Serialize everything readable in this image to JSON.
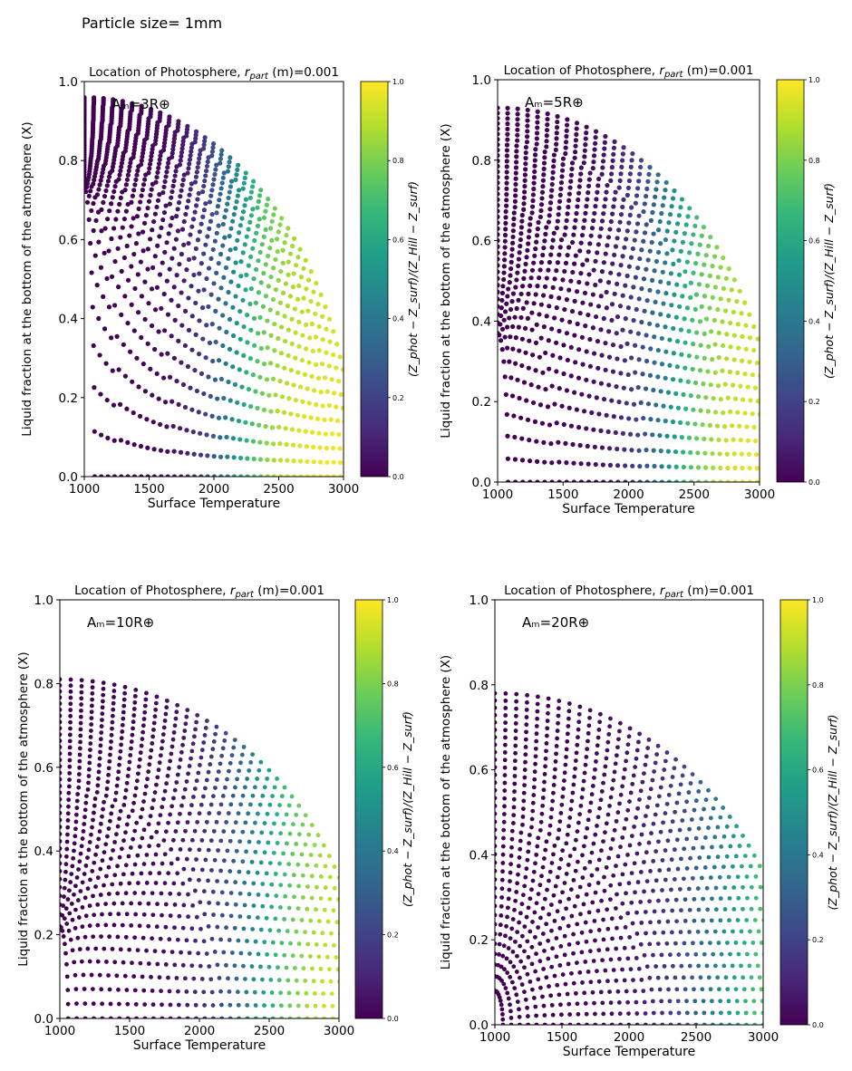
{
  "page_label": "Particle size= 1mm",
  "chart_data": [
    {
      "type": "scatter",
      "title": "Location of Photosphere, r_part (m)=0.001",
      "title_prefix": "Location of Photosphere, ",
      "title_symbol": "r",
      "title_subscript": "part",
      "title_suffix": " (m)=0.001",
      "annotation": "Aₘ=3R⊕",
      "xlabel": "Surface Temperature",
      "ylabel": "Liquid fraction at the bottom of the atmosphere (X)",
      "xlim": [
        1000,
        3000
      ],
      "ylim": [
        0.0,
        1.0
      ],
      "xticks": [
        "1000",
        "1500",
        "2000",
        "2500",
        "3000"
      ],
      "yticks": [
        "0.0",
        "0.2",
        "0.4",
        "0.6",
        "0.8",
        "1.0"
      ],
      "colorbar": {
        "label": "(Z_phot − Z_surf)/(Z_Hill − Z_surf)",
        "range": [
          0.0,
          1.0
        ],
        "ticks": [
          "0.0",
          "0.2",
          "0.4",
          "0.6",
          "0.8",
          "1.0"
        ],
        "colormap": "viridis"
      },
      "pattern": {
        "n_arcs": 40,
        "center_T": 1000,
        "center_X": 0.0,
        "Tmax_min": 1080,
        "Tmax_max": 3080,
        "peak_X_min": 0.73,
        "peak_X_max": 0.96,
        "transition_T": 2150,
        "transition_width": 160
      }
    },
    {
      "type": "scatter",
      "title": "Location of Photosphere, r_part (m)=0.001",
      "title_prefix": "Location of Photosphere, ",
      "title_symbol": "r",
      "title_subscript": "part",
      "title_suffix": " (m)=0.001",
      "annotation": "Aₘ=5R⊕",
      "xlabel": "Surface Temperature",
      "ylabel": "Liquid fraction at the bottom of the atmosphere (X)",
      "xlim": [
        1000,
        3000
      ],
      "ylim": [
        0.0,
        1.0
      ],
      "xticks": [
        "1000",
        "1500",
        "2000",
        "2500",
        "3000"
      ],
      "yticks": [
        "0.0",
        "0.2",
        "0.4",
        "0.6",
        "0.8",
        "1.0"
      ],
      "colorbar": {
        "label": "(Z_phot − Z_surf)/(Z_Hill − Z_surf)",
        "range": [
          0.0,
          1.0
        ],
        "ticks": [
          "0.0",
          "0.2",
          "0.4",
          "0.6",
          "0.8",
          "1.0"
        ],
        "colormap": "viridis"
      },
      "pattern": {
        "n_arcs": 38,
        "center_T": 1000,
        "center_X": 0.0,
        "Tmax_min": 1080,
        "Tmax_max": 3150,
        "peak_X_min": 0.37,
        "peak_X_max": 0.93,
        "transition_T": 2300,
        "transition_width": 180
      }
    },
    {
      "type": "scatter",
      "title": "Location of Photosphere, r_part (m)=0.001",
      "title_prefix": "Location of Photosphere, ",
      "title_symbol": "r",
      "title_subscript": "part",
      "title_suffix": " (m)=0.001",
      "annotation": "Aₘ=10R⊕",
      "xlabel": "Surface Temperature",
      "ylabel": "Liquid fraction at the bottom of the atmosphere (X)",
      "xlim": [
        1000,
        3000
      ],
      "ylim": [
        0.0,
        1.0
      ],
      "xticks": [
        "1000",
        "1500",
        "2000",
        "2500",
        "3000"
      ],
      "yticks": [
        "0.0",
        "0.2",
        "0.4",
        "0.6",
        "0.8",
        "1.0"
      ],
      "colorbar": {
        "label": "(Z_phot − Z_surf)/(Z_Hill − Z_surf)",
        "range": [
          0.0,
          1.0
        ],
        "ticks": [
          "0.0",
          "0.2",
          "0.4",
          "0.6",
          "0.8",
          "1.0"
        ],
        "colormap": "viridis"
      },
      "pattern": {
        "n_arcs": 36,
        "center_T": 1000,
        "center_X": 0.0,
        "Tmax_min": 1060,
        "Tmax_max": 3200,
        "peak_X_min": 0.22,
        "peak_X_max": 0.81,
        "transition_T": 2400,
        "transition_width": 200
      }
    },
    {
      "type": "scatter",
      "title": "Location of Photosphere, r_part (m)=0.001",
      "title_prefix": "Location of Photosphere, ",
      "title_symbol": "r",
      "title_subscript": "part",
      "title_suffix": " (m)=0.001",
      "annotation": "Aₘ=20R⊕",
      "xlabel": "Surface Temperature",
      "ylabel": "Liquid fraction at the bottom of the atmosphere (X)",
      "xlim": [
        1000,
        3000
      ],
      "ylim": [
        0.0,
        1.0
      ],
      "xticks": [
        "1000",
        "1500",
        "2000",
        "2500",
        "3000"
      ],
      "yticks": [
        "0.0",
        "0.2",
        "0.4",
        "0.6",
        "0.8",
        "1.0"
      ],
      "colorbar": {
        "label": "(Z_phot − Z_surf)/(Z_Hill − Z_surf)",
        "range": [
          0.0,
          1.0
        ],
        "ticks": [
          "0.0",
          "0.2",
          "0.4",
          "0.6",
          "0.8",
          "1.0"
        ],
        "colormap": "viridis"
      },
      "pattern": {
        "n_arcs": 36,
        "center_T": 1000,
        "center_X": 0.0,
        "Tmax_min": 1060,
        "Tmax_max": 3250,
        "peak_X_min": 0.08,
        "peak_X_max": 0.78,
        "transition_T": 2700,
        "transition_width": 260
      }
    }
  ]
}
